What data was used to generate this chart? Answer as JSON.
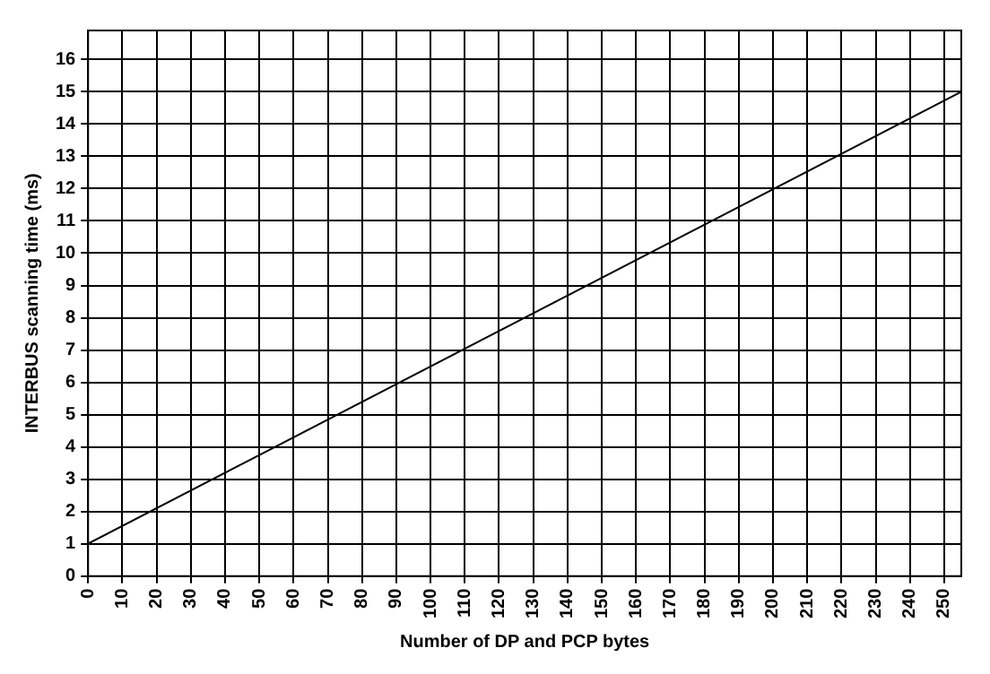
{
  "chart_data": {
    "type": "line",
    "xlabel": "Number of DP and PCP bytes",
    "ylabel": "INTERBUS scanning time (ms)",
    "x": [
      0,
      255
    ],
    "series": [
      {
        "color": "#000000",
        "values": [
          1,
          15
        ]
      }
    ],
    "xlim": [
      0,
      255
    ],
    "xticks": [
      0,
      10,
      20,
      30,
      40,
      50,
      60,
      70,
      80,
      90,
      100,
      110,
      120,
      130,
      140,
      150,
      160,
      170,
      180,
      190,
      200,
      210,
      220,
      230,
      240,
      250
    ],
    "ylim": [
      0,
      16.9
    ],
    "yticks": [
      0,
      1,
      2,
      3,
      4,
      5,
      6,
      7,
      8,
      9,
      10,
      11,
      12,
      13,
      14,
      15,
      16
    ],
    "grid": true,
    "legend": false,
    "marker": "none",
    "line_style": "solid"
  }
}
